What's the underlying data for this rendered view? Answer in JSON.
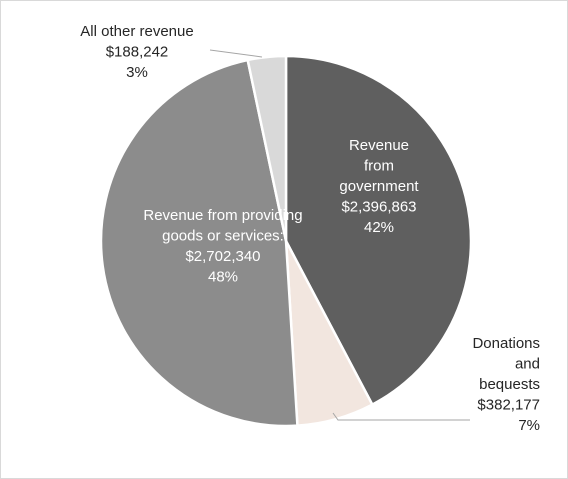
{
  "chart_data": {
    "type": "pie",
    "title": "",
    "start_angle_deg": 0,
    "direction": "clockwise",
    "slices": [
      {
        "name": "Revenue from government",
        "label_lines": [
          "Revenue",
          "from",
          "government"
        ],
        "value": 2396863,
        "value_label": "$2,396,863",
        "percent_label": "42%",
        "color": "#5f5f5f",
        "label_color": "#ffffff"
      },
      {
        "name": "Donations and bequests",
        "label_lines": [
          "Donations",
          "and",
          "bequests"
        ],
        "value": 382177,
        "value_label": "$382,177",
        "percent_label": "7%",
        "color": "#f2e6df",
        "label_color": "#262626"
      },
      {
        "name": "Revenue from providing goods or services",
        "label_lines": [
          "Revenue from providing",
          "goods or services"
        ],
        "value": 2702340,
        "value_label": "$2,702,340",
        "percent_label": "48%",
        "color": "#8c8c8c",
        "label_color": "#ffffff"
      },
      {
        "name": "All other revenue",
        "label_lines": [
          "All other revenue"
        ],
        "value": 188242,
        "value_label": "$188,242",
        "percent_label": "3%",
        "color": "#d9d9d9",
        "label_color": "#262626"
      }
    ],
    "legend": "none"
  }
}
